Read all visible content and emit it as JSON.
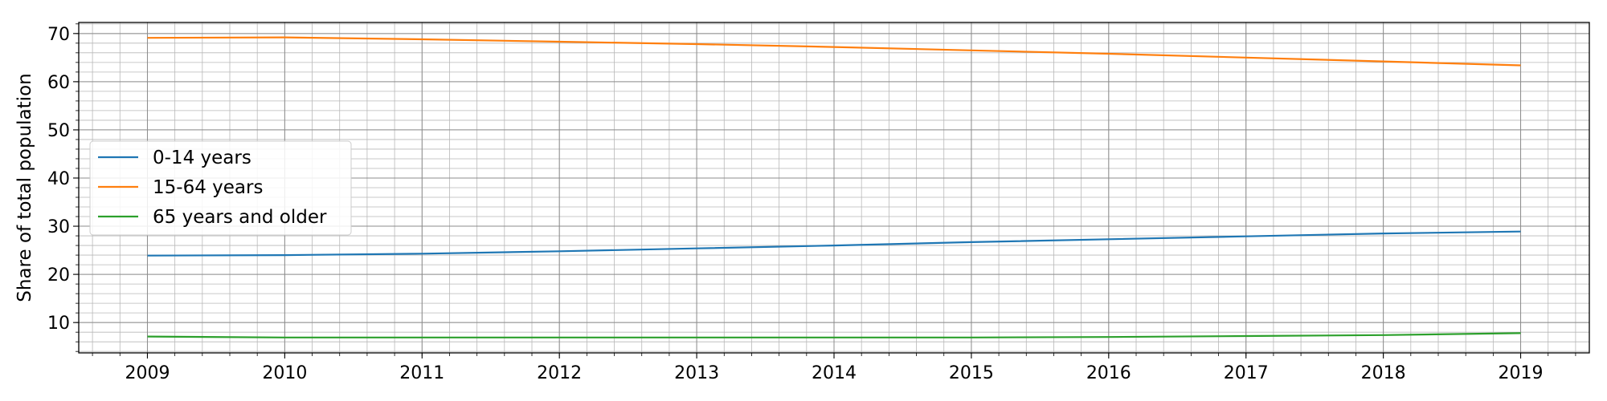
{
  "chart_data": {
    "type": "line",
    "title": "",
    "xlabel": "",
    "ylabel": "Share of total population",
    "x": [
      2009,
      2010,
      2011,
      2012,
      2013,
      2014,
      2015,
      2016,
      2017,
      2018,
      2019
    ],
    "xlim": [
      2008.5,
      2019.5
    ],
    "ylim": [
      3.7,
      72.3
    ],
    "x_ticks": [
      2009,
      2010,
      2011,
      2012,
      2013,
      2014,
      2015,
      2016,
      2017,
      2018,
      2019
    ],
    "y_ticks": [
      10,
      20,
      30,
      40,
      50,
      60,
      70
    ],
    "grid": "major and minor",
    "legend_position": "center-left",
    "series": [
      {
        "name": "0-14 years",
        "color": "#1f77b4",
        "values": [
          23.9,
          24.0,
          24.3,
          24.8,
          25.4,
          26.0,
          26.7,
          27.3,
          27.9,
          28.5,
          28.9
        ]
      },
      {
        "name": "15-64 years",
        "color": "#ff7f0e",
        "values": [
          69.1,
          69.2,
          68.8,
          68.3,
          67.8,
          67.2,
          66.5,
          65.8,
          65.0,
          64.2,
          63.4
        ]
      },
      {
        "name": "65 years and older",
        "color": "#2ca02c",
        "values": [
          7.1,
          6.9,
          6.9,
          6.9,
          6.9,
          6.9,
          6.9,
          7.0,
          7.2,
          7.4,
          7.8
        ]
      }
    ]
  }
}
